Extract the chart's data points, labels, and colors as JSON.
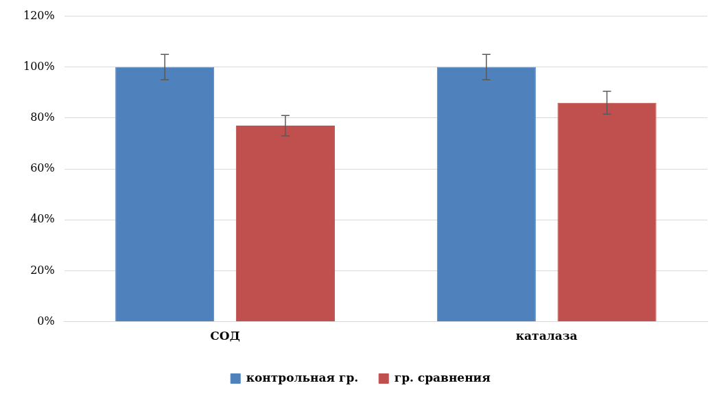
{
  "chart_data": {
    "type": "bar",
    "categories": [
      "СОД",
      "каталаза"
    ],
    "series": [
      {
        "name": "контрольная гр.",
        "color": "#4f81bd",
        "values": [
          100,
          100
        ],
        "errors": [
          5,
          5
        ]
      },
      {
        "name": "гр. сравнения",
        "color": "#c0504d",
        "values": [
          77,
          86
        ],
        "errors": [
          4,
          4.5
        ]
      }
    ],
    "ylim": [
      0,
      120
    ],
    "yticks": [
      {
        "value": 0,
        "label": "0%"
      },
      {
        "value": 20,
        "label": "20%"
      },
      {
        "value": 40,
        "label": "40%"
      },
      {
        "value": 60,
        "label": "60%"
      },
      {
        "value": 80,
        "label": "80%"
      },
      {
        "value": 100,
        "label": "100%"
      },
      {
        "value": 120,
        "label": "120%"
      }
    ],
    "grid": "y",
    "legend": "bottom"
  }
}
